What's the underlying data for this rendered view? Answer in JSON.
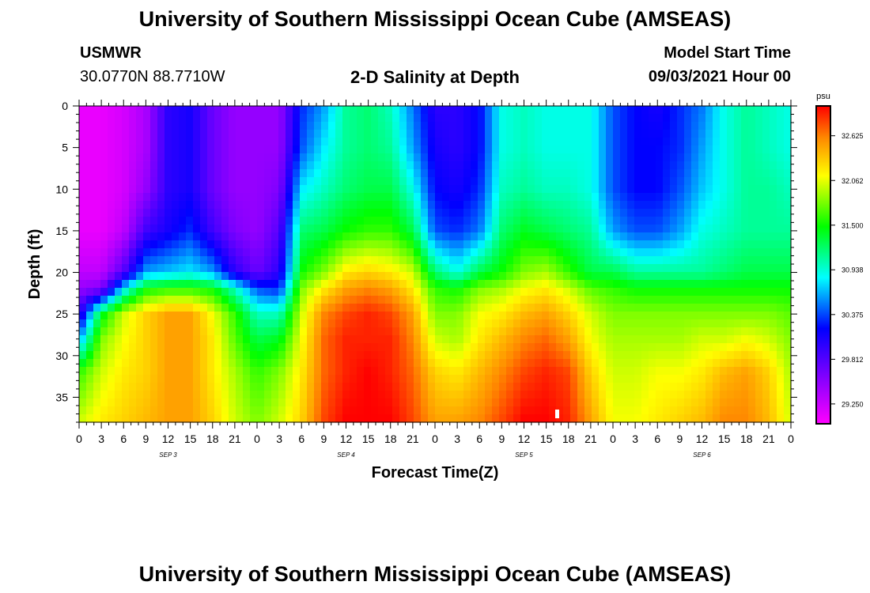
{
  "page": {
    "title_top": "University of Southern Mississippi Ocean Cube (AMSEAS)",
    "title_bottom": "University of Southern Mississippi Ocean Cube (AMSEAS)",
    "station": "USMWR",
    "coords": "30.0770N  88.7710W",
    "plot_title": "2-D Salinity at Depth",
    "model_label": "Model Start Time",
    "model_time": "09/03/2021 Hour 00"
  },
  "colors": {
    "stops": [
      "#ff00ff",
      "#8800ff",
      "#0000ff",
      "#00ffff",
      "#00ff00",
      "#ffff00",
      "#ff8800",
      "#ff0000"
    ]
  },
  "chart_data": {
    "type": "heatmap",
    "title": "2-D Salinity at Depth",
    "xlabel": "Forecast Time(Z)",
    "ylabel": "Depth (ft)",
    "y_ticks": [
      "0",
      "5",
      "10",
      "15",
      "20",
      "25",
      "30",
      "35"
    ],
    "y_range": [
      0,
      38
    ],
    "x_ticks": [
      "0",
      "3",
      "6",
      "9",
      "12",
      "15",
      "18",
      "21",
      "0",
      "3",
      "6",
      "9",
      "12",
      "15",
      "18",
      "21",
      "0",
      "3",
      "6",
      "9",
      "12",
      "15",
      "18",
      "21",
      "0",
      "3",
      "6",
      "9",
      "12",
      "15",
      "18",
      "21",
      "0"
    ],
    "x_range_hours": [
      0,
      96
    ],
    "day_labels": [
      {
        "text": "SEP 3",
        "hour": 12
      },
      {
        "text": "SEP 4",
        "hour": 36
      },
      {
        "text": "SEP 5",
        "hour": 60
      },
      {
        "text": "SEP 6",
        "hour": 84
      }
    ],
    "colorbar_unit": "psu",
    "colorbar_ticks": [
      "32.625",
      "32.062",
      "31.500",
      "30.938",
      "30.375",
      "29.812",
      "29.250"
    ],
    "value_range": [
      29.0,
      33.0
    ],
    "value_min": 29.0,
    "value_max": 33.0,
    "field_hours": [
      0,
      3,
      6,
      9,
      12,
      15,
      18,
      21,
      24,
      27,
      30,
      33,
      36,
      39,
      42,
      45,
      48,
      51,
      54,
      57,
      60,
      63,
      66,
      69,
      72,
      75,
      78,
      81,
      84,
      87,
      90,
      93,
      96
    ],
    "field_depths": [
      0,
      5,
      10,
      15,
      20,
      22,
      25,
      28,
      32,
      38
    ],
    "field_psu": [
      [
        29.1,
        29.1,
        29.1,
        29.1,
        29.3,
        29.5,
        29.9,
        30.6,
        31.6,
        32.0
      ],
      [
        29.1,
        29.1,
        29.1,
        29.1,
        29.3,
        29.6,
        31.4,
        31.8,
        32.0,
        32.2
      ],
      [
        29.2,
        29.2,
        29.2,
        29.3,
        29.8,
        30.8,
        32.0,
        32.1,
        32.2,
        32.3
      ],
      [
        29.4,
        29.4,
        29.5,
        29.9,
        30.6,
        31.5,
        32.3,
        32.3,
        32.3,
        32.4
      ],
      [
        30.0,
        30.0,
        30.0,
        30.1,
        30.7,
        31.6,
        32.5,
        32.5,
        32.5,
        32.5
      ],
      [
        30.1,
        30.1,
        30.1,
        30.3,
        30.8,
        31.6,
        32.5,
        32.5,
        32.5,
        32.5
      ],
      [
        29.7,
        29.7,
        29.7,
        29.9,
        30.6,
        31.5,
        32.1,
        32.2,
        32.2,
        32.3
      ],
      [
        29.5,
        29.5,
        29.5,
        29.6,
        30.0,
        31.0,
        31.6,
        31.7,
        31.9,
        32.0
      ],
      [
        29.5,
        29.5,
        29.5,
        29.5,
        29.7,
        30.4,
        31.0,
        31.3,
        31.6,
        31.8
      ],
      [
        29.5,
        29.5,
        29.6,
        29.8,
        30.0,
        30.3,
        31.0,
        31.4,
        31.8,
        32.0
      ],
      [
        30.3,
        30.4,
        30.8,
        31.2,
        31.5,
        31.8,
        32.0,
        32.1,
        32.2,
        32.3
      ],
      [
        30.6,
        30.8,
        31.0,
        31.3,
        31.8,
        32.2,
        32.6,
        32.7,
        32.7,
        32.8
      ],
      [
        31.1,
        31.1,
        31.2,
        31.5,
        32.2,
        32.5,
        32.8,
        32.9,
        32.9,
        33.0
      ],
      [
        31.2,
        31.2,
        31.3,
        31.6,
        32.3,
        32.6,
        32.9,
        32.9,
        33.0,
        33.0
      ],
      [
        31.0,
        31.1,
        31.3,
        31.6,
        32.2,
        32.5,
        32.8,
        32.9,
        32.9,
        33.0
      ],
      [
        30.5,
        30.6,
        30.9,
        31.3,
        32.0,
        32.2,
        32.5,
        32.6,
        32.7,
        32.8
      ],
      [
        30.0,
        30.1,
        30.2,
        30.4,
        31.2,
        31.6,
        31.8,
        32.0,
        32.3,
        32.5
      ],
      [
        30.0,
        30.0,
        30.1,
        30.3,
        30.9,
        31.5,
        31.8,
        31.9,
        32.2,
        32.5
      ],
      [
        30.2,
        30.2,
        30.3,
        30.5,
        31.3,
        31.8,
        32.1,
        32.2,
        32.4,
        32.6
      ],
      [
        30.9,
        30.9,
        31.0,
        31.2,
        31.5,
        31.9,
        32.2,
        32.4,
        32.6,
        32.8
      ],
      [
        31.0,
        31.0,
        31.1,
        31.4,
        31.8,
        32.1,
        32.4,
        32.6,
        32.8,
        33.0
      ],
      [
        30.9,
        30.9,
        31.0,
        31.3,
        31.9,
        32.2,
        32.5,
        32.7,
        32.9,
        33.0
      ],
      [
        30.9,
        30.9,
        31.0,
        31.2,
        31.6,
        32.0,
        32.3,
        32.5,
        32.8,
        32.9
      ],
      [
        30.9,
        30.9,
        30.9,
        31.1,
        31.3,
        31.7,
        32.0,
        32.1,
        32.3,
        32.5
      ],
      [
        30.4,
        30.4,
        30.4,
        30.6,
        31.3,
        31.6,
        31.8,
        31.9,
        32.0,
        32.1
      ],
      [
        30.2,
        30.2,
        30.2,
        30.4,
        31.1,
        31.5,
        31.8,
        31.9,
        32.0,
        32.1
      ],
      [
        30.1,
        30.2,
        30.2,
        30.4,
        31.1,
        31.5,
        31.8,
        31.9,
        32.1,
        32.2
      ],
      [
        30.3,
        30.3,
        30.4,
        30.6,
        31.1,
        31.5,
        31.8,
        31.9,
        32.1,
        32.3
      ],
      [
        30.5,
        30.6,
        30.7,
        30.9,
        31.1,
        31.5,
        31.8,
        32.0,
        32.2,
        32.4
      ],
      [
        30.9,
        30.9,
        30.9,
        31.0,
        31.2,
        31.5,
        31.8,
        32.0,
        32.4,
        32.6
      ],
      [
        31.1,
        31.1,
        31.1,
        31.1,
        31.3,
        31.5,
        31.8,
        32.1,
        32.5,
        32.6
      ],
      [
        31.0,
        31.0,
        31.1,
        31.1,
        31.3,
        31.5,
        31.8,
        32.0,
        32.3,
        32.4
      ],
      [
        30.9,
        30.9,
        31.0,
        31.1,
        31.3,
        31.5,
        31.7,
        31.8,
        31.9,
        32.0
      ]
    ]
  }
}
